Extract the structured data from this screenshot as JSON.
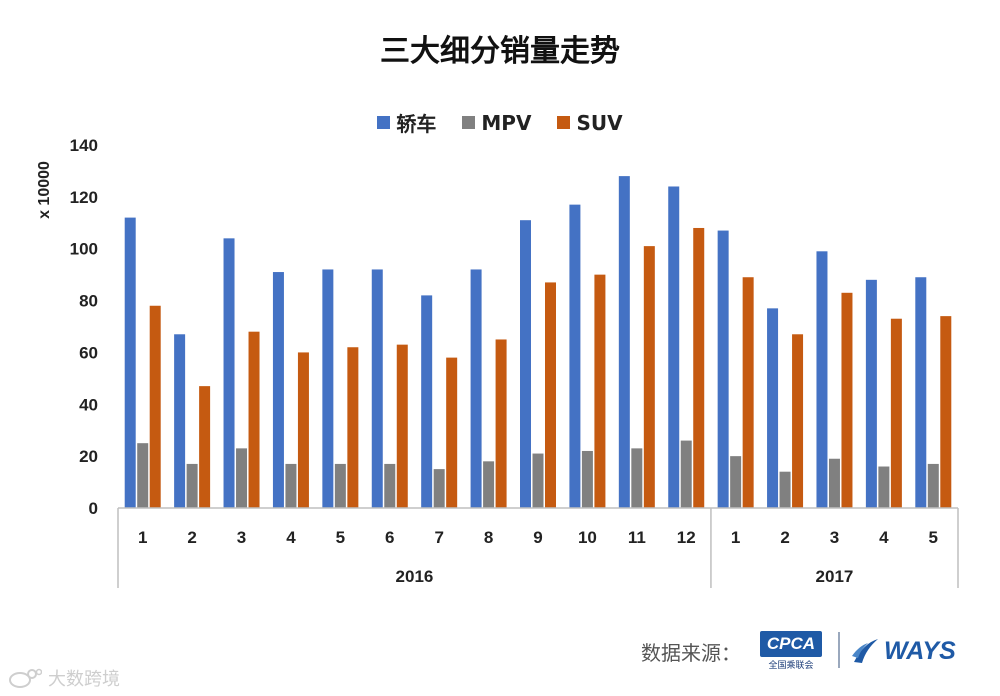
{
  "colors": {
    "sedan": "#4472C4",
    "mpv": "#808080",
    "suv": "#C55A11"
  },
  "footer": {
    "source_label": "数据来源：",
    "cpca_logo": "CPCA",
    "cpca_sub": "全国乘联会",
    "ways_logo": "WAYS"
  },
  "watermark": {
    "text": "大数跨境",
    "icon": "weibo-style-watermark-icon"
  },
  "chart_data": {
    "type": "bar",
    "title": "三大细分销量走势",
    "ylabel": "x 10000",
    "xlabel": "",
    "ylim": [
      0,
      140
    ],
    "yticks": [
      0,
      20,
      40,
      60,
      80,
      100,
      120,
      140
    ],
    "grid": false,
    "legend_position": "top-center",
    "categories": [
      "1",
      "2",
      "3",
      "4",
      "5",
      "6",
      "7",
      "8",
      "9",
      "10",
      "11",
      "12",
      "1",
      "2",
      "3",
      "4",
      "5"
    ],
    "groups": [
      {
        "label": "2016",
        "count": 12
      },
      {
        "label": "2017",
        "count": 5
      }
    ],
    "series": [
      {
        "name": "轿车",
        "color": "#4472C4",
        "values": [
          112,
          67,
          104,
          91,
          92,
          92,
          82,
          92,
          111,
          117,
          128,
          124,
          107,
          77,
          99,
          88,
          89
        ]
      },
      {
        "name": "MPV",
        "color": "#808080",
        "values": [
          25,
          17,
          23,
          17,
          17,
          17,
          15,
          18,
          21,
          22,
          23,
          26,
          20,
          14,
          19,
          16,
          17
        ]
      },
      {
        "name": "SUV",
        "color": "#C55A11",
        "values": [
          78,
          47,
          68,
          60,
          62,
          63,
          58,
          65,
          87,
          90,
          101,
          108,
          89,
          67,
          83,
          73,
          74
        ]
      }
    ]
  }
}
